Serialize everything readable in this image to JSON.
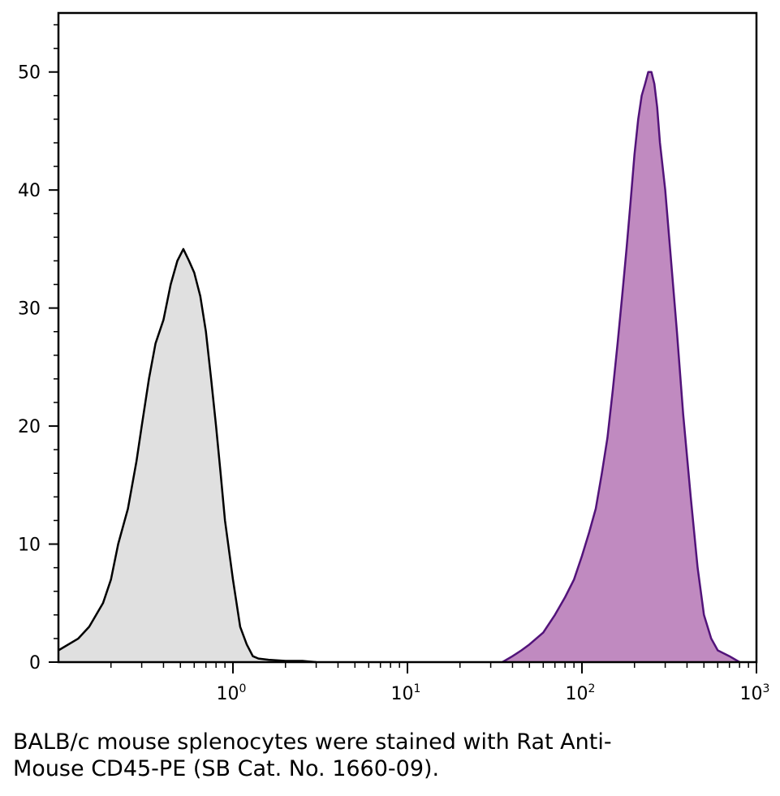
{
  "chart_data": {
    "type": "area",
    "x_scale": "log",
    "xlim": [
      0.1,
      1000
    ],
    "ylim": [
      0,
      55
    ],
    "x_ticks": [
      {
        "value": 1,
        "base": "10",
        "exp": "0"
      },
      {
        "value": 10,
        "base": "10",
        "exp": "1"
      },
      {
        "value": 100,
        "base": "10",
        "exp": "2"
      },
      {
        "value": 1000,
        "base": "10",
        "exp": "3"
      }
    ],
    "y_ticks": [
      0,
      10,
      20,
      30,
      40,
      50
    ],
    "grid": false,
    "series": [
      {
        "fill": "#e0e0e0",
        "stroke": "#000000",
        "x": [
          0.1,
          0.13,
          0.15,
          0.18,
          0.2,
          0.22,
          0.25,
          0.28,
          0.3,
          0.33,
          0.36,
          0.4,
          0.44,
          0.48,
          0.52,
          0.56,
          0.6,
          0.65,
          0.7,
          0.75,
          0.8,
          0.85,
          0.9,
          1.0,
          1.1,
          1.2,
          1.3,
          1.4,
          1.6,
          2.0,
          2.5,
          3.0
        ],
        "y": [
          1,
          2,
          3,
          5,
          7,
          10,
          13,
          17,
          20,
          24,
          27,
          29,
          32,
          34,
          35,
          34,
          33,
          31,
          28,
          24,
          20,
          16,
          12,
          7,
          3,
          1.5,
          0.5,
          0.3,
          0.2,
          0.1,
          0.1,
          0
        ]
      },
      {
        "fill": "#c08ac0",
        "stroke": "#52137a",
        "x": [
          35,
          40,
          45,
          50,
          60,
          70,
          80,
          90,
          100,
          110,
          120,
          130,
          140,
          150,
          160,
          170,
          180,
          190,
          200,
          210,
          220,
          230,
          240,
          250,
          260,
          270,
          280,
          300,
          320,
          350,
          380,
          420,
          460,
          500,
          550,
          600,
          700,
          800
        ],
        "y": [
          0,
          0.5,
          1,
          1.5,
          2.5,
          4,
          5.5,
          7,
          9,
          11,
          13,
          16,
          19,
          23,
          27,
          31,
          35,
          39,
          43,
          46,
          48,
          49,
          50,
          50,
          49,
          47,
          44,
          40,
          35,
          28,
          21,
          14,
          8,
          4,
          2,
          1,
          0.5,
          0
        ]
      }
    ]
  },
  "caption": {
    "line1": "BALB/c mouse splenocytes were stained with Rat Anti-",
    "line2": "Mouse CD45-PE (SB Cat. No. 1660-09)."
  }
}
